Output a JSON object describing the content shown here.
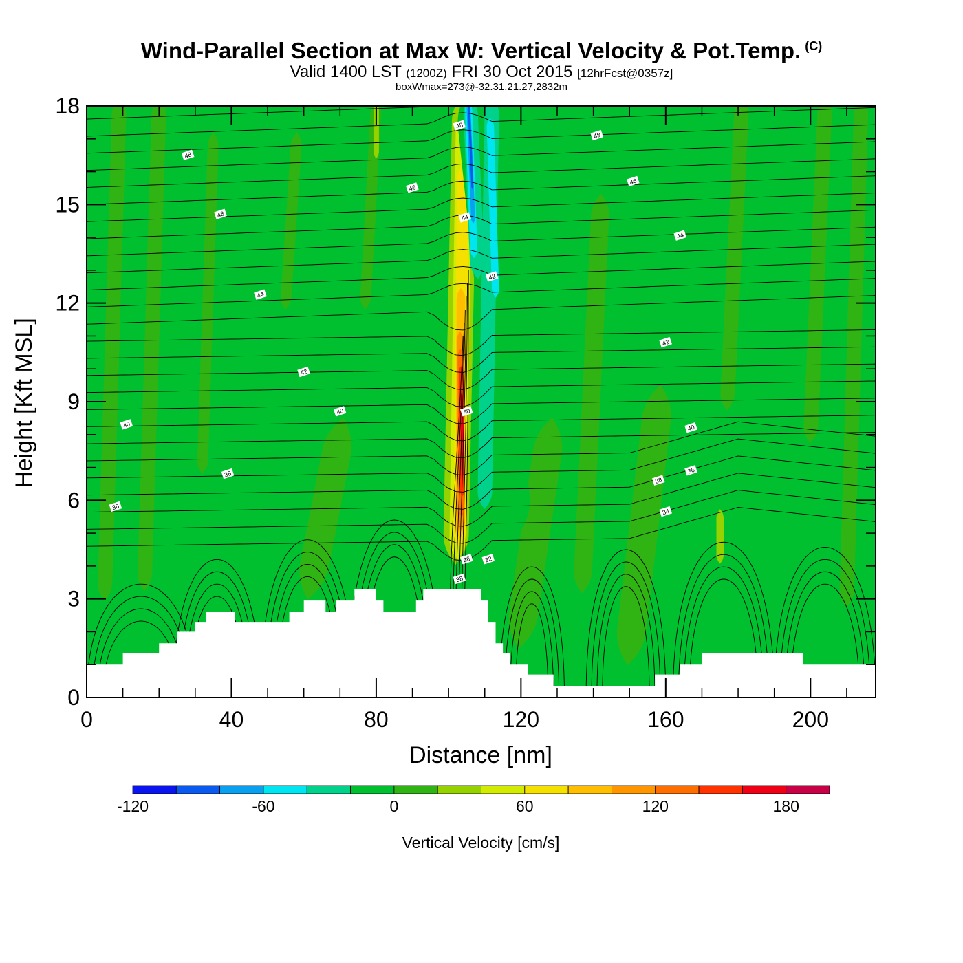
{
  "header": {
    "title": "Wind-Parallel Section at Max W: Vertical Velocity & Pot.Temp.",
    "copyright_mark": "(C)",
    "valid_prefix": "Valid 1400 LST",
    "valid_utc": "(1200Z)",
    "valid_date": "FRI 30 Oct 2015",
    "forecast": "[12hrFcst@0357z]",
    "box_note": "boxWmax=273@-32.31,21.27,2832m"
  },
  "chart_data": {
    "type": "heatmap",
    "xlabel": "Distance [nm]",
    "ylabel": "Height [Kft MSL]",
    "xlim": [
      0,
      218
    ],
    "ylim": [
      0,
      18
    ],
    "x_ticks": [
      "0",
      "40",
      "80",
      "120",
      "160",
      "200"
    ],
    "y_ticks": [
      "0",
      "3",
      "6",
      "9",
      "12",
      "15",
      "18"
    ],
    "x_tick_values": [
      0,
      40,
      80,
      120,
      160,
      200
    ],
    "y_tick_values": [
      0,
      3,
      6,
      9,
      12,
      15,
      18
    ],
    "background_fill": "#00c030",
    "colorbar": {
      "label": "Vertical Velocity [cm/s]",
      "tick_labels": [
        "-120",
        "-60",
        "0",
        "60",
        "120",
        "180"
      ],
      "tick_values": [
        -120,
        -60,
        0,
        60,
        120,
        180
      ],
      "levels": [
        -120,
        -100,
        -80,
        -60,
        -40,
        -20,
        0,
        20,
        40,
        60,
        80,
        100,
        120,
        140,
        160,
        180,
        200
      ],
      "colors": [
        "#0a14f0",
        "#0a5af0",
        "#0aa0f0",
        "#00e6f0",
        "#00d28c",
        "#00c030",
        "#30b414",
        "#96d200",
        "#d2eb00",
        "#f5e100",
        "#ffbe00",
        "#ff9600",
        "#ff6e00",
        "#ff3200",
        "#f00014",
        "#c80046"
      ]
    },
    "terrain_profile": [
      [
        0,
        1.0
      ],
      [
        10,
        1.0
      ],
      [
        10,
        1.35
      ],
      [
        20,
        1.35
      ],
      [
        20,
        1.65
      ],
      [
        25,
        1.65
      ],
      [
        25,
        2.0
      ],
      [
        30,
        2.0
      ],
      [
        30,
        2.3
      ],
      [
        33,
        2.3
      ],
      [
        33,
        2.6
      ],
      [
        41,
        2.6
      ],
      [
        41,
        2.3
      ],
      [
        56,
        2.3
      ],
      [
        56,
        2.6
      ],
      [
        60,
        2.6
      ],
      [
        60,
        2.95
      ],
      [
        66,
        2.95
      ],
      [
        66,
        2.6
      ],
      [
        69,
        2.6
      ],
      [
        69,
        2.95
      ],
      [
        74,
        2.95
      ],
      [
        74,
        3.3
      ],
      [
        80,
        3.3
      ],
      [
        80,
        2.95
      ],
      [
        82,
        2.95
      ],
      [
        82,
        2.6
      ],
      [
        91,
        2.6
      ],
      [
        91,
        2.95
      ],
      [
        93,
        2.95
      ],
      [
        93,
        3.3
      ],
      [
        109,
        3.3
      ],
      [
        109,
        2.95
      ],
      [
        111,
        2.95
      ],
      [
        111,
        2.3
      ],
      [
        113,
        2.3
      ],
      [
        113,
        1.65
      ],
      [
        115,
        1.65
      ],
      [
        115,
        1.35
      ],
      [
        117,
        1.35
      ],
      [
        117,
        1.0
      ],
      [
        122,
        1.0
      ],
      [
        122,
        0.7
      ],
      [
        129,
        0.7
      ],
      [
        129,
        0.35
      ],
      [
        157,
        0.35
      ],
      [
        157,
        0.7
      ],
      [
        164,
        0.7
      ],
      [
        164,
        1.0
      ],
      [
        170,
        1.0
      ],
      [
        170,
        1.35
      ],
      [
        198,
        1.35
      ],
      [
        198,
        1.0
      ],
      [
        218,
        1.0
      ]
    ],
    "contour_labels": [
      {
        "text": "48",
        "x": 28,
        "y": 16.5
      },
      {
        "text": "48",
        "x": 37,
        "y": 14.7
      },
      {
        "text": "46",
        "x": 90,
        "y": 15.5
      },
      {
        "text": "48",
        "x": 103,
        "y": 17.4
      },
      {
        "text": "48",
        "x": 141,
        "y": 17.1
      },
      {
        "text": "46",
        "x": 151,
        "y": 15.7
      },
      {
        "text": "44",
        "x": 104.5,
        "y": 14.6
      },
      {
        "text": "44",
        "x": 164,
        "y": 14.05
      },
      {
        "text": "44",
        "x": 48,
        "y": 12.25
      },
      {
        "text": "42",
        "x": 112,
        "y": 12.8
      },
      {
        "text": "42",
        "x": 160,
        "y": 10.8
      },
      {
        "text": "42",
        "x": 60,
        "y": 9.9
      },
      {
        "text": "40",
        "x": 11,
        "y": 8.3
      },
      {
        "text": "40",
        "x": 70,
        "y": 8.7
      },
      {
        "text": "40",
        "x": 105,
        "y": 8.7
      },
      {
        "text": "40",
        "x": 167,
        "y": 8.2
      },
      {
        "text": "38",
        "x": 39,
        "y": 6.8
      },
      {
        "text": "38",
        "x": 158,
        "y": 6.6
      },
      {
        "text": "36",
        "x": 8,
        "y": 5.8
      },
      {
        "text": "36",
        "x": 167,
        "y": 6.9
      },
      {
        "text": "34",
        "x": 160,
        "y": 5.65
      },
      {
        "text": "36",
        "x": 105,
        "y": 4.2
      },
      {
        "text": "32",
        "x": 111,
        "y": 4.2
      },
      {
        "text": "38",
        "x": 103,
        "y": 3.6
      }
    ],
    "w_regions": [
      {
        "w": 0,
        "x": [
          5,
          9
        ],
        "y": [
          3.2,
          18
        ],
        "width_nm": 4
      },
      {
        "w": 0,
        "x": [
          16,
          20
        ],
        "y": [
          3.5,
          18
        ],
        "width_nm": 4
      },
      {
        "w": 0,
        "x": [
          32,
          35
        ],
        "y": [
          7,
          17
        ],
        "width_nm": 3
      },
      {
        "w": 0,
        "x": [
          55,
          58
        ],
        "y": [
          12,
          17
        ],
        "width_nm": 3
      },
      {
        "w": 0,
        "x": [
          77,
          80
        ],
        "y": [
          12,
          18
        ],
        "width_nm": 3
      },
      {
        "w": 0,
        "x": [
          137,
          142
        ],
        "y": [
          3.5,
          15
        ],
        "width_nm": 5
      },
      {
        "w": 0,
        "x": [
          177,
          181
        ],
        "y": [
          9,
          18
        ],
        "width_nm": 4
      },
      {
        "w": 0,
        "x": [
          200,
          204
        ],
        "y": [
          8,
          18
        ],
        "width_nm": 4
      },
      {
        "w": 0,
        "x": [
          210,
          214
        ],
        "y": [
          3,
          18
        ],
        "width_nm": 4
      },
      {
        "w": 10,
        "x": [
          62,
          70
        ],
        "y": [
          3.5,
          8
        ],
        "width_nm": 8
      },
      {
        "w": 10,
        "x": [
          120,
          128
        ],
        "y": [
          2,
          8
        ],
        "width_nm": 8
      },
      {
        "w": 10,
        "x": [
          150,
          158
        ],
        "y": [
          1.5,
          9
        ],
        "width_nm": 8
      },
      {
        "w": 30,
        "x": [
          175,
          175
        ],
        "y": [
          4.2,
          5.6
        ],
        "width_nm": 2
      },
      {
        "w": 30,
        "x": [
          80,
          80
        ],
        "y": [
          16.5,
          18
        ],
        "width_nm": 1.5
      },
      {
        "w": 30,
        "x": [
          102,
          104.5
        ],
        "y": [
          4.5,
          18
        ],
        "width_nm": 7
      },
      {
        "w": 50,
        "x": [
          102.5,
          104.3
        ],
        "y": [
          4.5,
          17.5
        ],
        "width_nm": 4.6
      },
      {
        "w": 70,
        "x": [
          103,
          104
        ],
        "y": [
          4.8,
          16
        ],
        "width_nm": 3.3
      },
      {
        "w": 90,
        "x": [
          103.2,
          103.4
        ],
        "y": [
          5,
          12.3
        ],
        "width_nm": 2.4
      },
      {
        "w": 110,
        "x": [
          103.5,
          103.2
        ],
        "y": [
          5.2,
          11
        ],
        "width_nm": 2
      },
      {
        "w": 130,
        "x": [
          103.6,
          103.3
        ],
        "y": [
          5.6,
          10.5
        ],
        "width_nm": 1.6
      },
      {
        "w": 150,
        "x": [
          103.8,
          103.4
        ],
        "y": [
          6.2,
          10
        ],
        "width_nm": 1.2
      },
      {
        "w": 170,
        "x": [
          104,
          103.6
        ],
        "y": [
          6.8,
          9.2
        ],
        "width_nm": 0.8
      },
      {
        "w": -10,
        "x": [
          106.5,
          118.5
        ],
        "y": [
          18,
          5.5
        ],
        "width_nm": 9
      },
      {
        "w": -30,
        "x": [
          112,
          110
        ],
        "y": [
          18,
          6
        ],
        "width_nm": 4
      },
      {
        "w": -30,
        "x": [
          106,
          108
        ],
        "y": [
          18,
          13
        ],
        "width_nm": 4
      },
      {
        "w": -50,
        "x": [
          111.5,
          113
        ],
        "y": [
          17.5,
          12.3
        ],
        "width_nm": 2
      },
      {
        "w": -50,
        "x": [
          105.5,
          107
        ],
        "y": [
          18,
          13.5
        ],
        "width_nm": 2
      },
      {
        "w": -70,
        "x": [
          105.5,
          106.8
        ],
        "y": [
          18,
          14.5
        ],
        "width_nm": 1.1
      },
      {
        "w": -90,
        "x": [
          105.6,
          106.6
        ],
        "y": [
          18,
          15.5
        ],
        "width_nm": 0.6
      }
    ]
  }
}
